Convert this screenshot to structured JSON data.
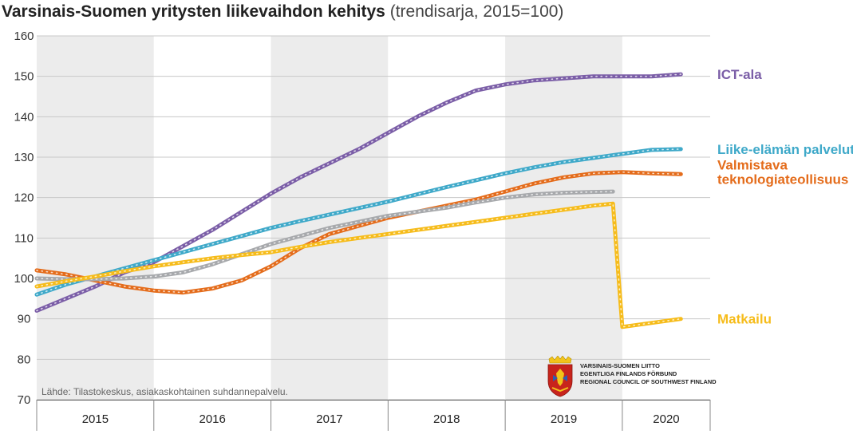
{
  "chart_data": {
    "type": "line",
    "title": "Varsinais-Suomen yritysten liikevaihdon kehitys",
    "subtitle": "(trendisarja, 2015=100)",
    "ylim": [
      70,
      160
    ],
    "yticks": [
      70,
      80,
      90,
      100,
      110,
      120,
      130,
      140,
      150,
      160
    ],
    "years": [
      "2015",
      "2016",
      "2017",
      "2018",
      "2019",
      "2020"
    ],
    "source": "Lähde: Tilastokeskus, asiakaskohtainen suhdannepalvelu.",
    "grid": true,
    "series": [
      {
        "name": "ICT-ala",
        "color": "#7b5ea7",
        "x": [
          2015.0,
          2015.25,
          2015.5,
          2015.75,
          2016.0,
          2016.25,
          2016.5,
          2016.75,
          2017.0,
          2017.25,
          2017.5,
          2017.75,
          2018.0,
          2018.25,
          2018.5,
          2018.75,
          2019.0,
          2019.25,
          2019.5,
          2019.75,
          2020.0,
          2020.25,
          2020.5
        ],
        "values": [
          92,
          95,
          98,
          101.5,
          104,
          108,
          112,
          116.5,
          121,
          125,
          128.5,
          132,
          136,
          140,
          143.5,
          146.5,
          148,
          149,
          149.5,
          150,
          150,
          150,
          150.5
        ]
      },
      {
        "name": "Liike-elämän palvelut",
        "color": "#3fa9c9",
        "x": [
          2015.0,
          2015.25,
          2015.5,
          2015.75,
          2016.0,
          2016.25,
          2016.5,
          2016.75,
          2017.0,
          2017.25,
          2017.5,
          2017.75,
          2018.0,
          2018.25,
          2018.5,
          2018.75,
          2019.0,
          2019.25,
          2019.5,
          2019.75,
          2020.0,
          2020.25,
          2020.5
        ],
        "values": [
          96,
          98.5,
          100.5,
          102.5,
          104.5,
          106.5,
          108.5,
          110.5,
          112.5,
          114.2,
          115.8,
          117.4,
          119,
          120.8,
          122.6,
          124.3,
          126,
          127.5,
          128.8,
          129.8,
          130.8,
          131.8,
          132
        ]
      },
      {
        "name": "Valmistava teknologiateollisuus",
        "color": "#e46c1b",
        "x": [
          2015.0,
          2015.25,
          2015.5,
          2015.75,
          2016.0,
          2016.25,
          2016.5,
          2016.75,
          2017.0,
          2017.25,
          2017.5,
          2017.75,
          2018.0,
          2018.25,
          2018.5,
          2018.75,
          2019.0,
          2019.25,
          2019.5,
          2019.75,
          2020.0,
          2020.25,
          2020.5
        ],
        "values": [
          102,
          101,
          99.5,
          98,
          97,
          96.5,
          97.5,
          99.5,
          103,
          107.5,
          111,
          113,
          115,
          116.5,
          118,
          119.5,
          121.5,
          123.5,
          125,
          126,
          126.3,
          126,
          125.8
        ]
      },
      {
        "name": "",
        "color": "#a7a9ac",
        "x": [
          2015.0,
          2015.25,
          2015.5,
          2015.75,
          2016.0,
          2016.25,
          2016.5,
          2016.75,
          2017.0,
          2017.25,
          2017.5,
          2017.75,
          2018.0,
          2018.25,
          2018.5,
          2018.75,
          2019.0,
          2019.25,
          2019.5,
          2019.75,
          2019.92
        ],
        "values": [
          100,
          99.8,
          99.8,
          100,
          100.5,
          101.5,
          103.5,
          106,
          108.5,
          110.5,
          112.5,
          114,
          115.5,
          116.5,
          117.5,
          118.8,
          120,
          120.8,
          121.2,
          121.4,
          121.5
        ]
      },
      {
        "name": "Matkailu",
        "color": "#f6bc1b",
        "x": [
          2015.0,
          2015.25,
          2015.5,
          2015.75,
          2016.0,
          2016.25,
          2016.5,
          2016.75,
          2017.0,
          2017.25,
          2017.5,
          2017.75,
          2018.0,
          2018.25,
          2018.5,
          2018.75,
          2019.0,
          2019.25,
          2019.5,
          2019.75,
          2019.92,
          2020.0,
          2020.5
        ],
        "values": [
          98,
          99.3,
          100.5,
          101.8,
          103,
          104,
          105,
          105.8,
          106.5,
          107.8,
          109,
          110,
          111,
          112,
          113,
          114,
          115,
          116,
          117,
          118,
          118.5,
          88,
          90
        ]
      }
    ]
  },
  "logo": {
    "org_lines": [
      "VARSINAIS-SUOMEN LIITTO",
      "EGENTLIGA FINLANDS FÖRBUND",
      "REGIONAL COUNCIL OF SOUTHWEST FINLAND"
    ]
  }
}
